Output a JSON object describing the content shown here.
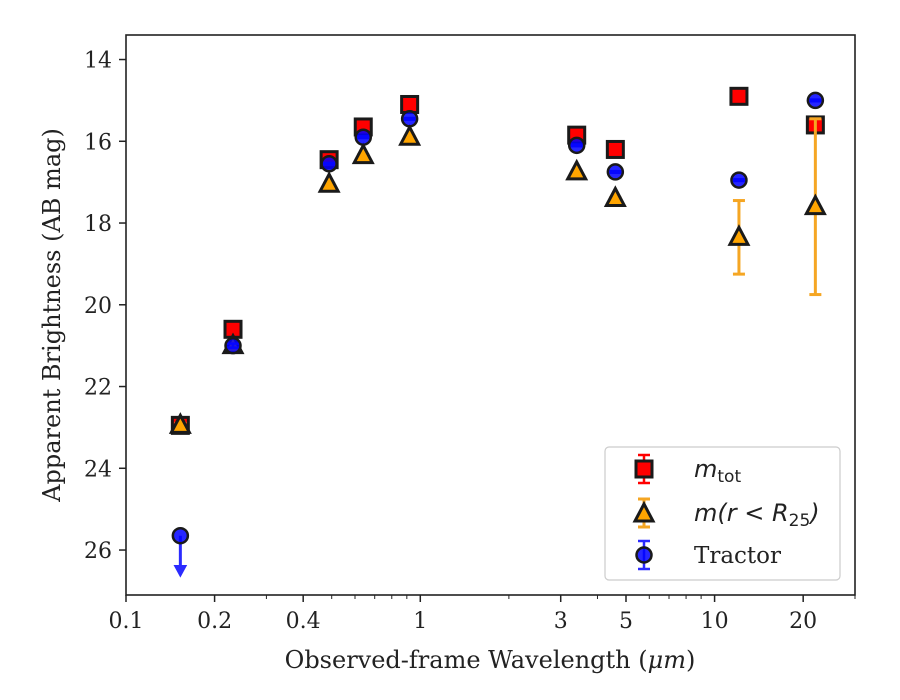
{
  "chart_data": {
    "type": "scatter",
    "xlabel_main": "Observed-frame Wavelength (",
    "xlabel_unit": "μm",
    "xlabel_close": ")",
    "ylabel": "Apparent Brightness (AB mag)",
    "xscale": "log",
    "xlim": [
      0.1,
      30
    ],
    "ylim": [
      27.1,
      13.4
    ],
    "y_inverted": true,
    "x_ticks": [
      0.1,
      0.2,
      0.4,
      1,
      3,
      5,
      10,
      20
    ],
    "x_tick_labels": [
      "0.1",
      "0.2",
      "0.4",
      "1",
      "3",
      "5",
      "10",
      "20"
    ],
    "y_ticks": [
      14,
      16,
      18,
      20,
      22,
      24,
      26
    ],
    "y_tick_labels": [
      "14",
      "16",
      "18",
      "20",
      "22",
      "24",
      "26"
    ],
    "legend": {
      "placement": "lower-right",
      "entries": [
        {
          "math_main": "m",
          "math_sub": "tot"
        },
        {
          "math_main": "m(r < R",
          "math_sub": "25",
          "math_close": ")"
        },
        {
          "text": "Tractor"
        }
      ]
    },
    "colors": {
      "m_tot": "#ff0000",
      "m_r25": "#ffa500",
      "tractor": "#0000ff",
      "marker_edge": "#1a1a1a",
      "tractor_err": "#2b2bff",
      "r25_err": "#f5a623"
    },
    "series": [
      {
        "key": "m_tot",
        "marker": "square",
        "x": [
          0.153,
          0.231,
          0.49,
          0.64,
          0.92,
          3.4,
          4.6,
          12.1,
          22.0
        ],
        "y": [
          22.95,
          20.6,
          16.45,
          15.65,
          15.1,
          15.85,
          16.2,
          14.9,
          15.6
        ],
        "yerr": [
          0.05,
          0.05,
          0.02,
          0.02,
          0.02,
          0.02,
          0.02,
          0.02,
          0.05
        ]
      },
      {
        "key": "m_r25",
        "marker": "triangle",
        "x": [
          0.153,
          0.231,
          0.49,
          0.64,
          0.92,
          3.4,
          4.6,
          12.1,
          22.0
        ],
        "y": [
          22.95,
          21.0,
          17.05,
          16.35,
          15.9,
          16.75,
          17.4,
          18.35,
          17.6
        ],
        "yerr": [
          0.05,
          0.05,
          0.02,
          0.02,
          0.02,
          0.02,
          0.02,
          0.9,
          2.15
        ]
      },
      {
        "key": "tractor",
        "marker": "circle",
        "x": [
          0.153,
          0.231,
          0.49,
          0.64,
          0.92,
          3.4,
          4.6,
          12.1,
          22.0
        ],
        "y": [
          25.65,
          21.0,
          16.55,
          15.9,
          15.45,
          16.1,
          16.75,
          16.95,
          15.0
        ],
        "yerr": [
          0.0,
          0.05,
          0.02,
          0.02,
          0.02,
          0.02,
          0.02,
          0.02,
          0.02
        ],
        "upper_limit": [
          true,
          false,
          false,
          false,
          false,
          false,
          false,
          false,
          false
        ]
      }
    ]
  }
}
